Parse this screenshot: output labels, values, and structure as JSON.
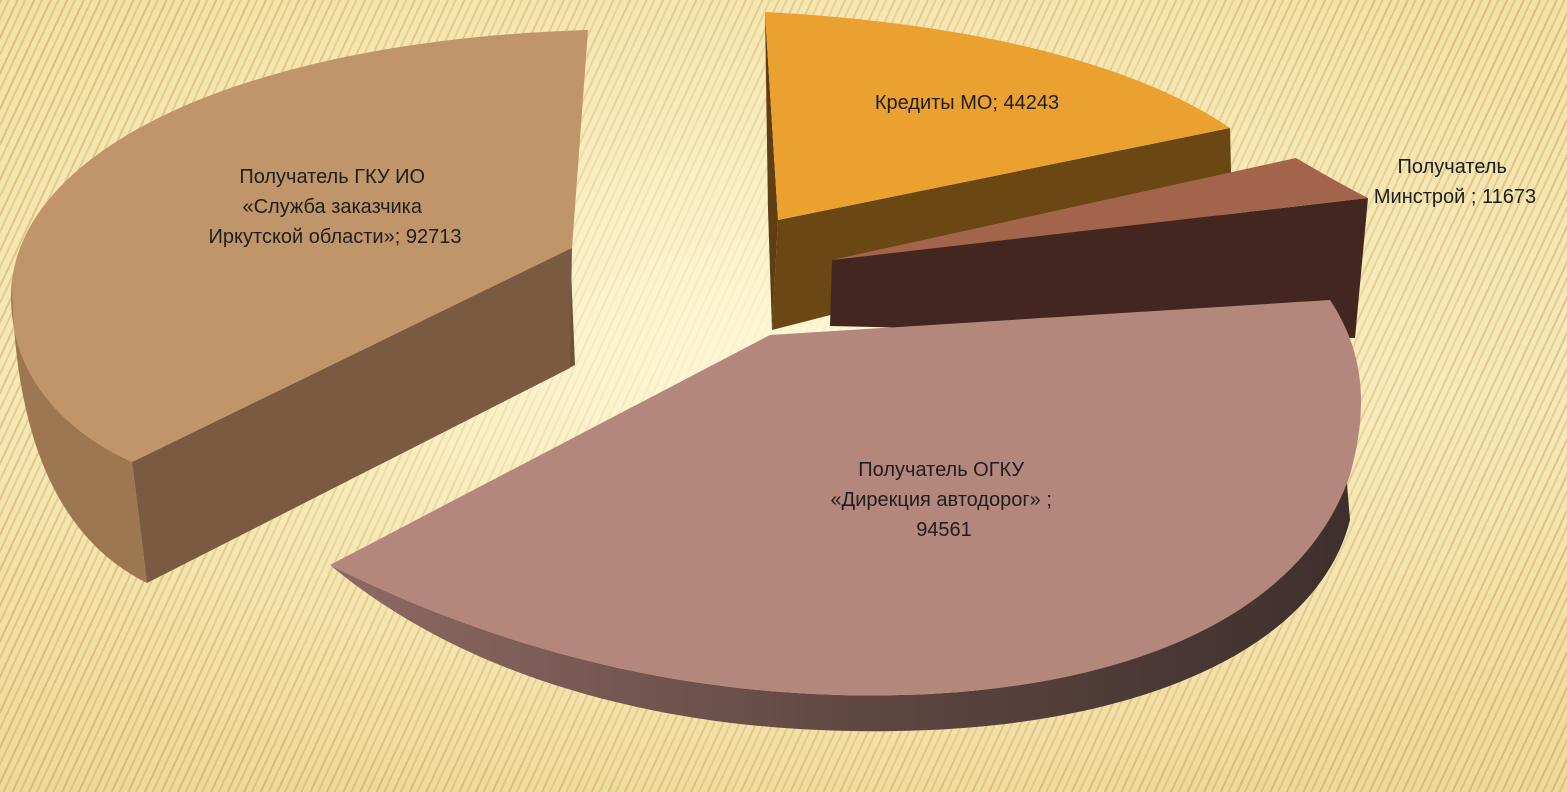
{
  "chart_data": {
    "type": "pie",
    "title": "",
    "legend": "none",
    "slices": [
      {
        "label_lines": [
          "Получатель ГКУ ИО",
          "«Служба заказчика",
          "Иркутской области»; 92713"
        ],
        "name": "Получатель ГКУ ИО «Служба заказчика Иркутской области»",
        "value": 92713,
        "color": "#c1956a"
      },
      {
        "label_lines": [
          "Кредиты МО; 44243"
        ],
        "name": "Кредиты МО",
        "value": 44243,
        "color": "#eba12f"
      },
      {
        "label_lines": [
          "Получатель",
          "Минстрой ; 11673"
        ],
        "name": "Получатель Минстрой",
        "value": 11673,
        "color": "#a3644c"
      },
      {
        "label_lines": [
          "Получатель ОГКУ",
          "«Дирекция автодорог» ;",
          "94561"
        ],
        "name": "Получатель ОГКУ «Дирекция автодорог»",
        "value": 94561,
        "color": "#b4877c"
      }
    ]
  }
}
